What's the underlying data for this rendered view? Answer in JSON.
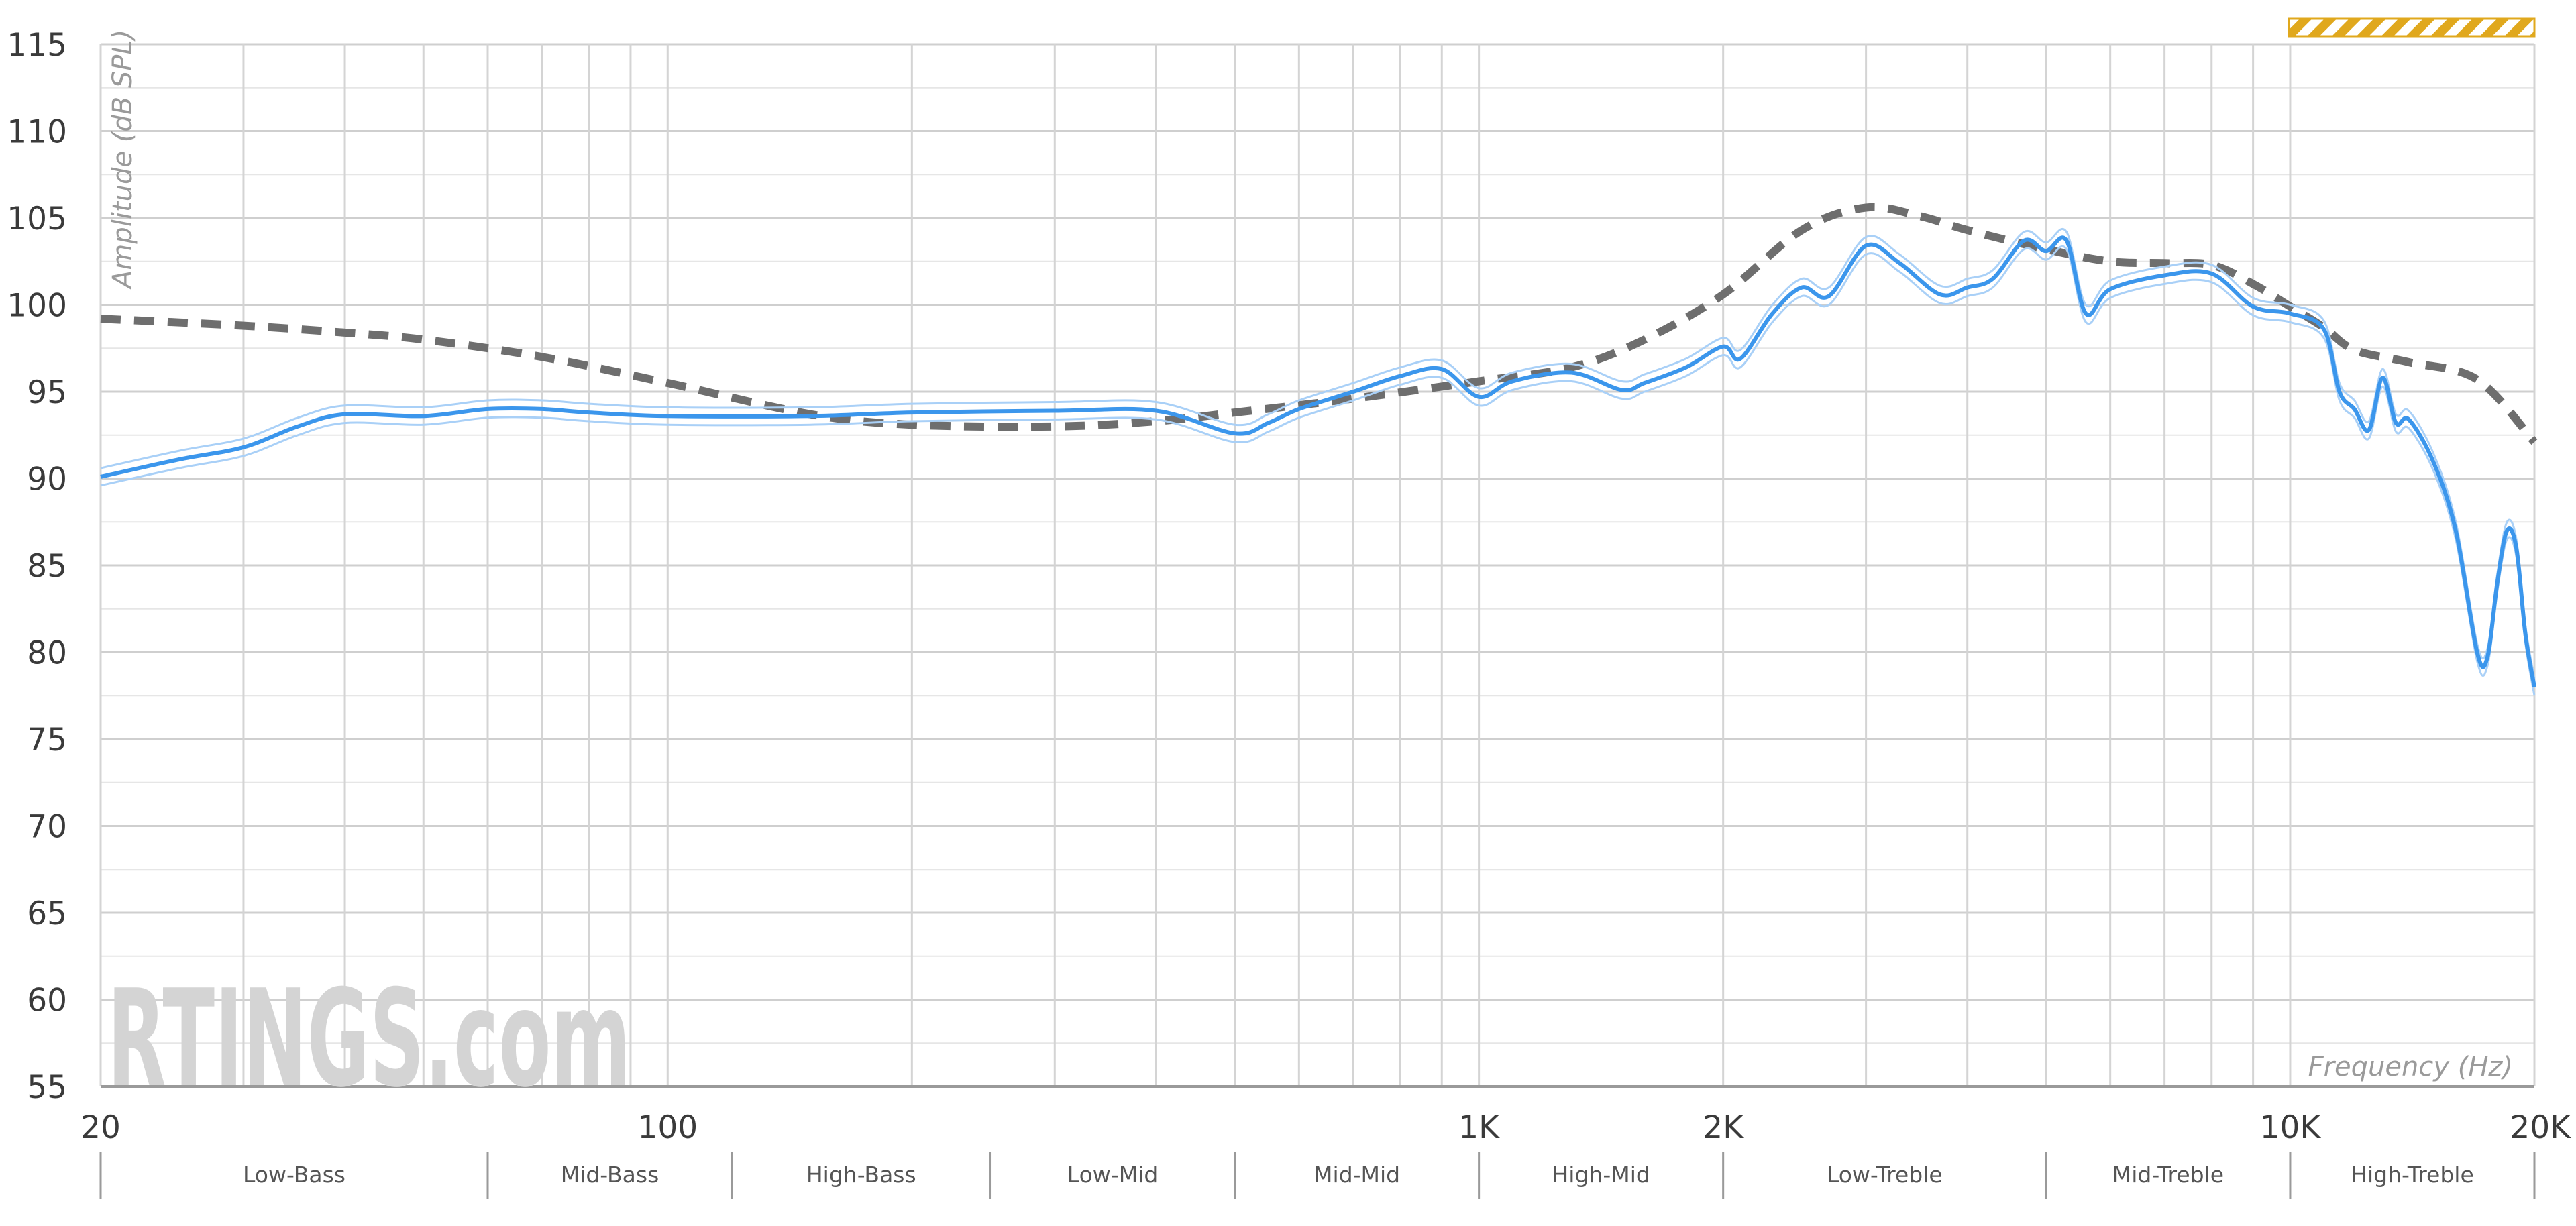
{
  "chart_data": {
    "type": "line",
    "xscale": "log",
    "xlim": [
      20,
      20000
    ],
    "ylim": [
      55,
      115
    ],
    "xlabel": "Frequency (Hz)",
    "ylabel": "Amplitude (dB SPL)",
    "grid": true,
    "yticks": [
      55,
      60,
      65,
      70,
      75,
      80,
      85,
      90,
      95,
      100,
      105,
      110,
      115
    ],
    "xtick_labels": [
      {
        "value": 20,
        "label": "20"
      },
      {
        "value": 100,
        "label": "100"
      },
      {
        "value": 1000,
        "label": "1K"
      },
      {
        "value": 2000,
        "label": "2K"
      },
      {
        "value": 10000,
        "label": "10K"
      },
      {
        "value": 20000,
        "label": "20K"
      }
    ],
    "bands": [
      {
        "label": "Low-Bass",
        "from": 20,
        "to": 60
      },
      {
        "label": "Mid-Bass",
        "from": 60,
        "to": 120
      },
      {
        "label": "High-Bass",
        "from": 120,
        "to": 250
      },
      {
        "label": "Low-Mid",
        "from": 250,
        "to": 500
      },
      {
        "label": "Mid-Mid",
        "from": 500,
        "to": 1000
      },
      {
        "label": "High-Mid",
        "from": 1000,
        "to": 2000
      },
      {
        "label": "Low-Treble",
        "from": 2000,
        "to": 5000
      },
      {
        "label": "Mid-Treble",
        "from": 5000,
        "to": 10000
      },
      {
        "label": "High-Treble",
        "from": 10000,
        "to": 20000
      }
    ],
    "series": [
      {
        "role": "target",
        "style": "dashed",
        "color": "#6e6e6e",
        "x": [
          20,
          30,
          40,
          50,
          70,
          100,
          150,
          200,
          300,
          400,
          500,
          700,
          1000,
          1300,
          1600,
          2000,
          2500,
          3000,
          3500,
          4000,
          5000,
          6000,
          7000,
          8000,
          9000,
          10000,
          11000,
          12000,
          14000,
          17000,
          20000
        ],
        "y": [
          99.2,
          98.8,
          98.4,
          98.0,
          97.0,
          95.5,
          93.7,
          93.1,
          93.0,
          93.3,
          93.8,
          94.6,
          95.6,
          96.4,
          98.0,
          100.6,
          104.3,
          105.6,
          105.1,
          104.3,
          103.2,
          102.5,
          102.4,
          102.3,
          101.2,
          99.9,
          98.7,
          97.4,
          96.7,
          95.7,
          92.1
        ]
      },
      {
        "role": "measured",
        "style": "solid",
        "color": "#3b96ec",
        "x": [
          20,
          25,
          30,
          35,
          40,
          50,
          60,
          70,
          80,
          100,
          150,
          200,
          300,
          400,
          500,
          550,
          600,
          700,
          800,
          900,
          1000,
          1100,
          1300,
          1500,
          1600,
          1800,
          2000,
          2100,
          2300,
          2500,
          2700,
          3000,
          3300,
          3700,
          4000,
          4300,
          4700,
          5000,
          5300,
          5600,
          6000,
          7000,
          8000,
          9000,
          10000,
          11000,
          11500,
          12000,
          12500,
          13000,
          13500,
          14000,
          15000,
          16000,
          17000,
          17500,
          18000,
          18500,
          19000,
          19500,
          20000
        ],
        "y": [
          90.1,
          91.1,
          91.8,
          93.0,
          93.7,
          93.6,
          94.0,
          94.0,
          93.8,
          93.6,
          93.6,
          93.8,
          93.9,
          93.9,
          92.6,
          93.2,
          94.0,
          95.0,
          95.9,
          96.3,
          94.7,
          95.6,
          96.1,
          95.1,
          95.5,
          96.4,
          97.6,
          96.9,
          99.5,
          101.0,
          100.5,
          103.4,
          102.4,
          100.6,
          101.0,
          101.5,
          103.7,
          103.1,
          103.7,
          99.5,
          100.9,
          101.7,
          101.8,
          99.9,
          99.5,
          98.6,
          95.0,
          94.0,
          92.8,
          95.8,
          93.2,
          93.4,
          91.0,
          87.0,
          80.0,
          79.7,
          84.0,
          87.0,
          86.0,
          81.0,
          78.0
        ]
      }
    ],
    "watermark": "RTINGS.com",
    "header_strip_color": "#e0a81d"
  }
}
